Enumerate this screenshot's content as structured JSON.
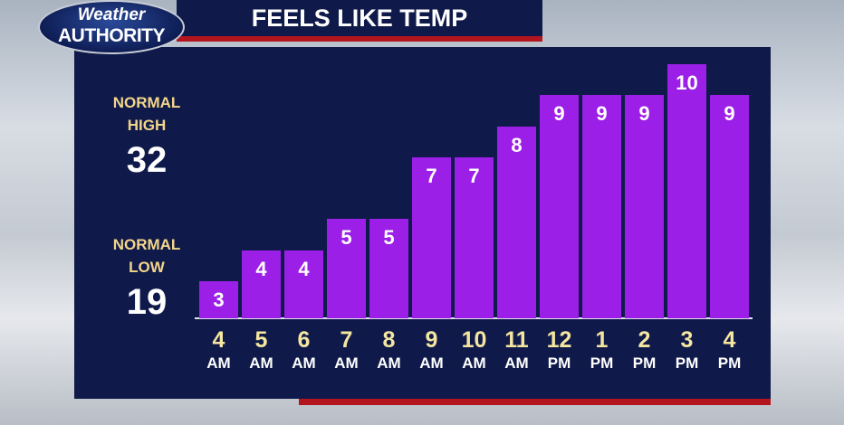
{
  "logo": {
    "line1": "Weather",
    "line2": "AUTHORITY"
  },
  "normals": [
    {
      "label": "NORMAL\nHIGH",
      "value": 32
    },
    {
      "label": "NORMAL\nLOW",
      "value": 19
    }
  ],
  "chart_data": {
    "type": "bar",
    "title": "FEELS LIKE TEMP",
    "categories": [
      "4\nAM",
      "5\nAM",
      "6\nAM",
      "7\nAM",
      "8\nAM",
      "9\nAM",
      "10\nAM",
      "11\nAM",
      "12\nPM",
      "1\nPM",
      "2\nPM",
      "3\nPM",
      "4\nPM"
    ],
    "values": [
      3,
      4,
      4,
      5,
      5,
      7,
      7,
      8,
      9,
      9,
      9,
      10,
      9
    ],
    "color": "#9b1fe6",
    "ylim": [
      1.8,
      10
    ]
  }
}
